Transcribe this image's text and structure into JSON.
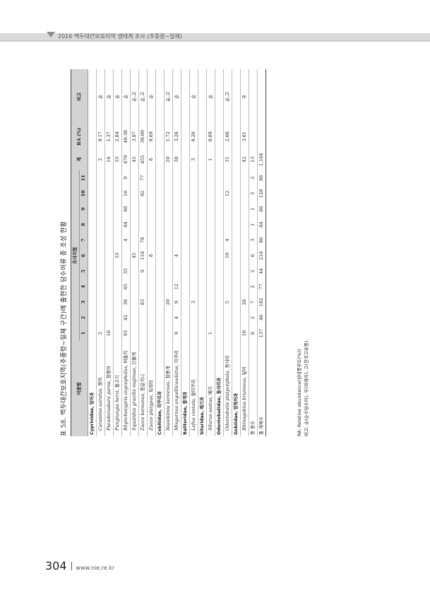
{
  "header": {
    "running_title": "2016 백두대간보호지역 생태계 조사 (추풍령~일재)"
  },
  "footer": {
    "page_number": "304",
    "url": "www.nie.re.kr"
  },
  "table": {
    "caption": "표 58. 백두대간보호지역(추풍령~일재 구간)에 출현한 담수어류 종 조성 현황",
    "col_species": "어종명",
    "col_sites": "조사지점",
    "site_numbers": [
      "1",
      "2",
      "3",
      "4",
      "5",
      "6",
      "7",
      "8",
      "9",
      "10",
      "11"
    ],
    "col_total": "계",
    "col_ra": "RA (%)",
    "col_remark": "비고",
    "rows": [
      {
        "type": "family",
        "name": "Cyprinidae, 잉어과"
      },
      {
        "type": "species",
        "sci": "Carassius auratus,",
        "kor": "붕어",
        "counts": [
          "2",
          "",
          "",
          "",
          "",
          "",
          "",
          "",
          "",
          "",
          ""
        ],
        "total": "2",
        "ra": "0.17",
        "remark": "순"
      },
      {
        "type": "species",
        "sci": "Pseudorasbora parva,",
        "kor": "참붕어",
        "counts": [
          "16",
          "",
          "",
          "",
          "",
          "",
          "",
          "",
          "",
          "",
          ""
        ],
        "total": "16",
        "ra": "1.37",
        "remark": "순"
      },
      {
        "type": "species",
        "sci": "Pungtungia herzi,",
        "kor": "돌고기",
        "counts": [
          "",
          "",
          "",
          "",
          "",
          "33",
          "",
          "",
          "",
          "",
          ""
        ],
        "total": "33",
        "ra": "2.84",
        "remark": "순"
      },
      {
        "type": "species",
        "sci": "Rhynchocypris oxycephalus,",
        "kor": "버들치",
        "counts": [
          "93",
          "42",
          "36",
          "65",
          "35",
          "",
          "4",
          "84",
          "86",
          "16",
          "9"
        ],
        "total": "470",
        "ra": "40.38",
        "remark": "순"
      },
      {
        "type": "species",
        "sci": "Squalidus gracilis majimae,",
        "kor": "긴몰개",
        "counts": [
          "",
          "",
          "",
          "",
          "",
          "45",
          "",
          "",
          "",
          "",
          ""
        ],
        "total": "45",
        "ra": "3.87",
        "remark": "순,고"
      },
      {
        "type": "species",
        "sci": "Zacco koreanus,",
        "kor": "참갈겨니",
        "counts": [
          "",
          "",
          "83",
          "",
          "9",
          "116",
          "78",
          "",
          "",
          "92",
          "77"
        ],
        "total": "455",
        "ra": "39.09",
        "remark": "순,고"
      },
      {
        "type": "species",
        "sci": "Zacco platypus,",
        "kor": "피라미",
        "counts": [
          "",
          "",
          "",
          "",
          "",
          "8",
          "",
          "",
          "",
          "",
          ""
        ],
        "total": "8",
        "ra": "0.69",
        "remark": "순"
      },
      {
        "type": "family",
        "name": "Cobitidae, 미꾸리과"
      },
      {
        "type": "species",
        "sci": "Iksookimia koreensis,",
        "kor": "참종개",
        "counts": [
          "",
          "",
          "20",
          "",
          "",
          "",
          "",
          "",
          "",
          "",
          ""
        ],
        "total": "20",
        "ra": "1.72",
        "remark": "순,고"
      },
      {
        "type": "species",
        "sci": "Misgurnus anguillicaudatus,",
        "kor": "미꾸리",
        "counts": [
          "9",
          "4",
          "9",
          "12",
          "",
          "4",
          "",
          "",
          "",
          "",
          ""
        ],
        "total": "38",
        "ra": "3.26",
        "remark": "순"
      },
      {
        "type": "family",
        "name": "Balitoridae, 종개과"
      },
      {
        "type": "species",
        "sci": "Lefua costata,",
        "kor": "쌀미꾸리",
        "counts": [
          "",
          "",
          "3",
          "",
          "",
          "",
          "",
          "",
          "",
          "",
          ""
        ],
        "total": "3",
        "ra": "0.26",
        "remark": "순"
      },
      {
        "type": "family",
        "name": "Siluridae, 메기과"
      },
      {
        "type": "species",
        "sci": "Silurus asotus,",
        "kor": "메기",
        "counts": [
          "1",
          "",
          "",
          "",
          "",
          "",
          "",
          "",
          "",
          "",
          ""
        ],
        "total": "1",
        "ra": "0.09",
        "remark": "순"
      },
      {
        "type": "family",
        "name": "Odontobutidae, 동사리과"
      },
      {
        "type": "species",
        "sci": "Odontobutis platycephala,",
        "kor": "동사리",
        "counts": [
          "",
          "",
          "5",
          "",
          "",
          "10",
          "4",
          "",
          "",
          "12",
          ""
        ],
        "total": "31",
        "ra": "2.66",
        "remark": "순,고"
      },
      {
        "type": "family",
        "name": "Gobiidae, 망둑어과"
      },
      {
        "type": "species",
        "sci": "Rhinogobius brunneus,",
        "kor": "밀어",
        "counts": [
          "16",
          "",
          "26",
          "",
          "",
          "",
          "",
          "",
          "",
          "",
          ""
        ],
        "total": "42",
        "ra": "3.61",
        "remark": "우"
      },
      {
        "type": "summary",
        "label": "종 종수",
        "counts": [
          "6",
          "2",
          "7",
          "2",
          "2",
          "6",
          "3",
          "1",
          "1",
          "3",
          "2"
        ],
        "total": "13",
        "ra": "",
        "remark": ""
      },
      {
        "type": "summary",
        "label": "총 개체수",
        "counts": [
          "137",
          "46",
          "182",
          "77",
          "44",
          "216",
          "86",
          "84",
          "86",
          "120",
          "86"
        ],
        "total": "1,164",
        "ra": "",
        "remark": ""
      }
    ],
    "notes": [
      "RA: Relative abundance(상대풍부도(%))",
      "비고: 순(순수담수어), 우(외래어), 고(한국고유종)."
    ]
  }
}
